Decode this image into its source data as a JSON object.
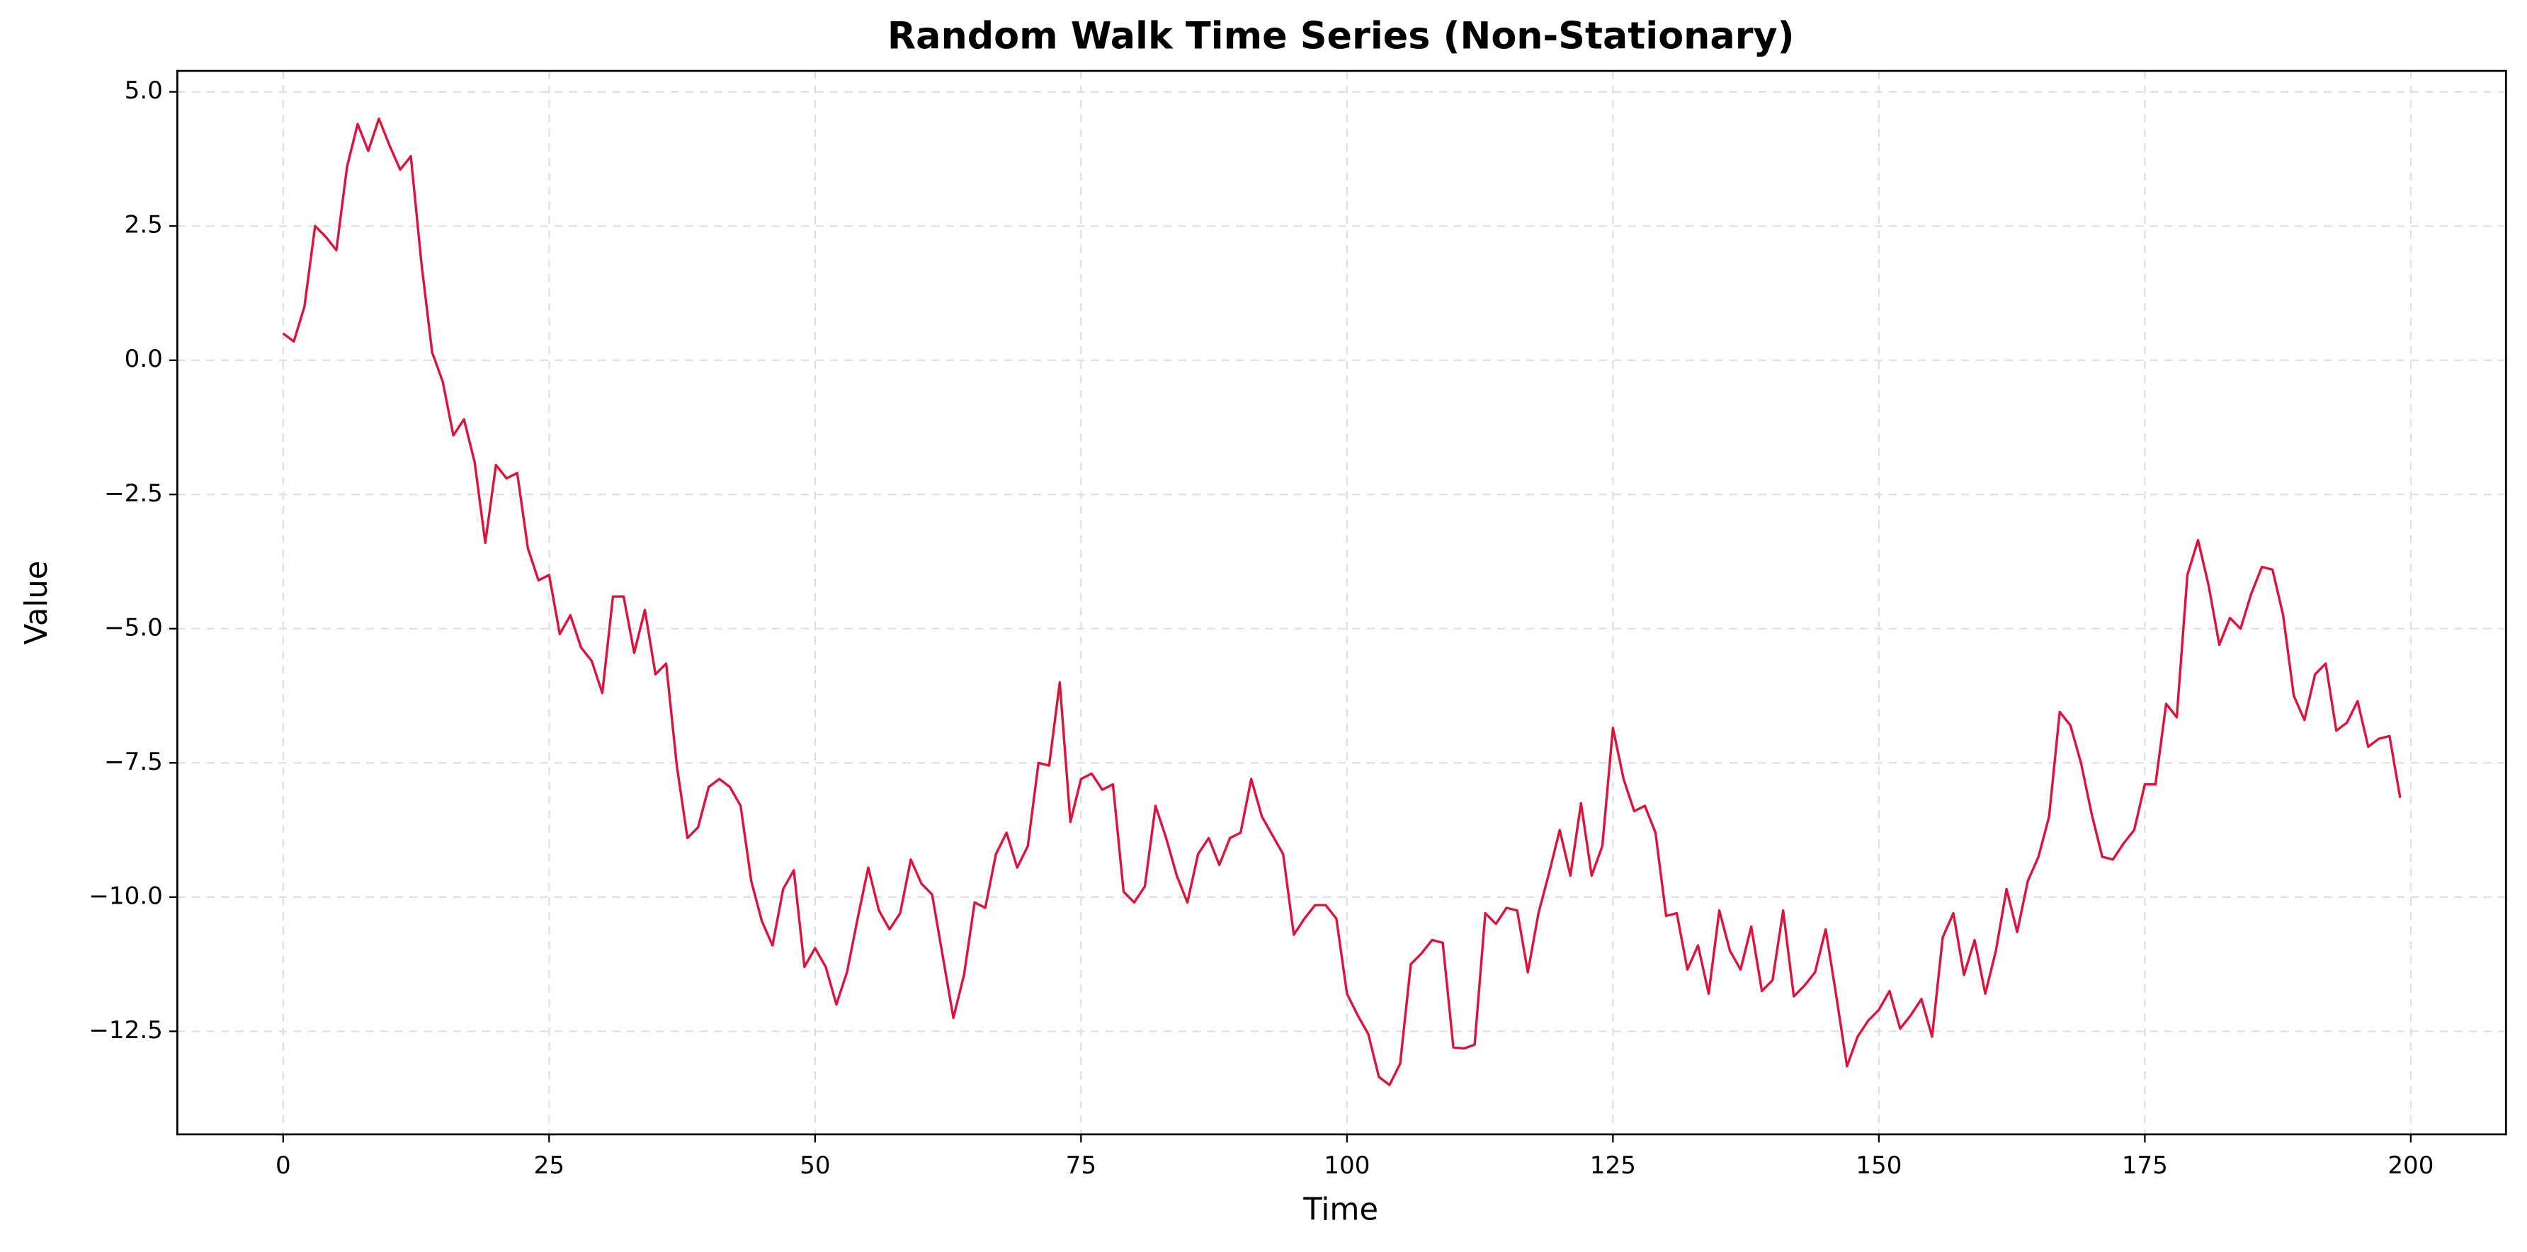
{
  "chart_data": {
    "type": "line",
    "title": "Random Walk Time Series (Non-Stationary)",
    "x_label": "Time",
    "y_label": "Value",
    "color": "#dc143c",
    "grid": true,
    "x": [
      0,
      1,
      2,
      3,
      4,
      5,
      6,
      7,
      8,
      9,
      10,
      11,
      12,
      13,
      14,
      15,
      16,
      17,
      18,
      19,
      20,
      21,
      22,
      23,
      24,
      25,
      26,
      27,
      28,
      29,
      30,
      31,
      32,
      33,
      34,
      35,
      36,
      37,
      38,
      39,
      40,
      41,
      42,
      43,
      44,
      45,
      46,
      47,
      48,
      49,
      50,
      51,
      52,
      53,
      54,
      55,
      56,
      57,
      58,
      59,
      60,
      61,
      62,
      63,
      64,
      65,
      66,
      67,
      68,
      69,
      70,
      71,
      72,
      73,
      74,
      75,
      76,
      77,
      78,
      79,
      80,
      81,
      82,
      83,
      84,
      85,
      86,
      87,
      88,
      89,
      90,
      91,
      92,
      93,
      94,
      95,
      96,
      97,
      98,
      99,
      100,
      101,
      102,
      103,
      104,
      105,
      106,
      107,
      108,
      109,
      110,
      111,
      112,
      113,
      114,
      115,
      116,
      117,
      118,
      119,
      120,
      121,
      122,
      123,
      124,
      125,
      126,
      127,
      128,
      129,
      130,
      131,
      132,
      133,
      134,
      135,
      136,
      137,
      138,
      139,
      140,
      141,
      142,
      143,
      144,
      145,
      146,
      147,
      148,
      149,
      150,
      151,
      152,
      153,
      154,
      155,
      156,
      157,
      158,
      159,
      160,
      161,
      162,
      163,
      164,
      165,
      166,
      167,
      168,
      169,
      170,
      171,
      172,
      173,
      174,
      175,
      176,
      177,
      178,
      179,
      180,
      181,
      182,
      183,
      184,
      185,
      186,
      187,
      188,
      189,
      190,
      191,
      192,
      193,
      194,
      195,
      196,
      197,
      198,
      199
    ],
    "values": [
      0.5,
      0.35,
      1.0,
      2.5,
      2.3,
      2.05,
      3.6,
      4.4,
      3.9,
      4.5,
      4.0,
      3.55,
      3.8,
      1.8,
      0.15,
      -0.4,
      -1.4,
      -1.1,
      -1.9,
      -3.4,
      -1.95,
      -2.2,
      -2.1,
      -3.5,
      -4.1,
      -4.0,
      -5.1,
      -4.75,
      -5.35,
      -5.6,
      -6.2,
      -4.4,
      -4.4,
      -5.45,
      -4.65,
      -5.85,
      -5.65,
      -7.55,
      -8.9,
      -8.7,
      -7.95,
      -7.8,
      -7.95,
      -8.3,
      -9.7,
      -10.45,
      -10.9,
      -9.85,
      -9.5,
      -11.3,
      -10.95,
      -11.3,
      -12.0,
      -11.4,
      -10.4,
      -9.45,
      -10.25,
      -10.6,
      -10.3,
      -9.3,
      -9.75,
      -9.95,
      -11.1,
      -12.25,
      -11.45,
      -10.1,
      -10.2,
      -9.2,
      -8.8,
      -9.45,
      -9.05,
      -7.5,
      -7.55,
      -6.0,
      -8.6,
      -7.8,
      -7.7,
      -8.0,
      -7.9,
      -9.9,
      -10.1,
      -9.8,
      -8.3,
      -8.9,
      -9.6,
      -10.1,
      -9.2,
      -8.9,
      -9.4,
      -8.9,
      -8.8,
      -7.8,
      -8.5,
      -8.85,
      -9.2,
      -10.7,
      -10.4,
      -10.15,
      -10.15,
      -10.4,
      -11.8,
      -12.2,
      -12.55,
      -13.35,
      -13.5,
      -13.1,
      -11.25,
      -11.05,
      -10.8,
      -10.85,
      -12.8,
      -12.82,
      -12.75,
      -10.3,
      -10.5,
      -10.2,
      -10.25,
      -11.4,
      -10.3,
      -9.55,
      -8.75,
      -9.6,
      -8.25,
      -9.6,
      -9.05,
      -6.85,
      -7.8,
      -8.4,
      -8.3,
      -8.8,
      -10.35,
      -10.3,
      -11.35,
      -10.9,
      -11.8,
      -10.25,
      -11.0,
      -11.35,
      -10.55,
      -11.75,
      -11.55,
      -10.25,
      -11.85,
      -11.65,
      -11.4,
      -10.6,
      -11.85,
      -13.15,
      -12.6,
      -12.3,
      -12.1,
      -11.75,
      -12.45,
      -12.2,
      -11.9,
      -12.6,
      -10.75,
      -10.3,
      -11.45,
      -10.8,
      -11.8,
      -11.0,
      -9.85,
      -10.65,
      -9.7,
      -9.25,
      -8.5,
      -6.55,
      -6.8,
      -7.5,
      -8.45,
      -9.25,
      -9.3,
      -9.0,
      -8.75,
      -7.9,
      -7.9,
      -6.4,
      -6.65,
      -4.0,
      -3.35,
      -4.2,
      -5.3,
      -4.8,
      -5.0,
      -4.35,
      -3.85,
      -3.9,
      -4.75,
      -6.25,
      -6.7,
      -5.85,
      -5.65,
      -6.9,
      -6.75,
      -6.35,
      -7.2,
      -7.05,
      -7.0,
      -8.15
    ],
    "xlim": [
      -9.95,
      208.95
    ],
    "xticks": [
      0,
      25,
      50,
      75,
      100,
      125,
      150,
      175,
      200
    ],
    "ylim": [
      -14.42,
      5.39
    ],
    "yticks": [
      {
        "value": -12.5,
        "label": "−12.5"
      },
      {
        "value": -10,
        "label": "−10.0"
      },
      {
        "value": -7.5,
        "label": "−7.5"
      },
      {
        "value": -5,
        "label": "−5.0"
      },
      {
        "value": -2.5,
        "label": "−2.5"
      },
      {
        "value": 0,
        "label": "0.0"
      },
      {
        "value": 2.5,
        "label": "2.5"
      },
      {
        "value": 5,
        "label": "5.0"
      }
    ]
  }
}
